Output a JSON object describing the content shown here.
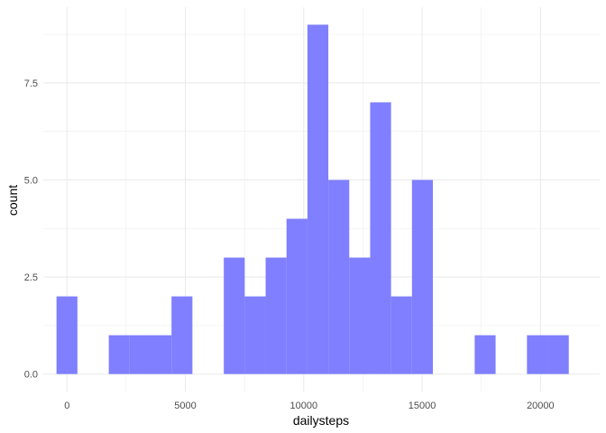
{
  "chart_data": {
    "type": "bar",
    "subtype": "histogram",
    "xlabel": "dailysteps",
    "ylabel": "count",
    "xlim": [
      -1000,
      22500
    ],
    "ylim": [
      -0.45,
      9.45
    ],
    "x_ticks": [
      0,
      5000,
      10000,
      15000,
      20000
    ],
    "x_tick_labels": [
      "0",
      "5000",
      "10000",
      "15000",
      "20000"
    ],
    "y_ticks": [
      0,
      2.5,
      5,
      7.5
    ],
    "y_tick_labels": [
      "0.0",
      "2.5",
      "5.0",
      "7.5"
    ],
    "bin_width": 883,
    "bins": [
      {
        "x": 0,
        "count": 2
      },
      {
        "x": 2208,
        "count": 1
      },
      {
        "x": 3091,
        "count": 1
      },
      {
        "x": 3974,
        "count": 1
      },
      {
        "x": 4857,
        "count": 2
      },
      {
        "x": 7066,
        "count": 3
      },
      {
        "x": 7949,
        "count": 2
      },
      {
        "x": 8832,
        "count": 3
      },
      {
        "x": 9715,
        "count": 4
      },
      {
        "x": 10598,
        "count": 9
      },
      {
        "x": 11481,
        "count": 5
      },
      {
        "x": 12364,
        "count": 3
      },
      {
        "x": 13247,
        "count": 7
      },
      {
        "x": 14130,
        "count": 2
      },
      {
        "x": 15013,
        "count": 5
      },
      {
        "x": 17662,
        "count": 1
      },
      {
        "x": 19870,
        "count": 1
      },
      {
        "x": 20753,
        "count": 1
      }
    ],
    "grid": true,
    "bar_color": "#7F7FFF",
    "grid_color": "#EBEBEB"
  }
}
